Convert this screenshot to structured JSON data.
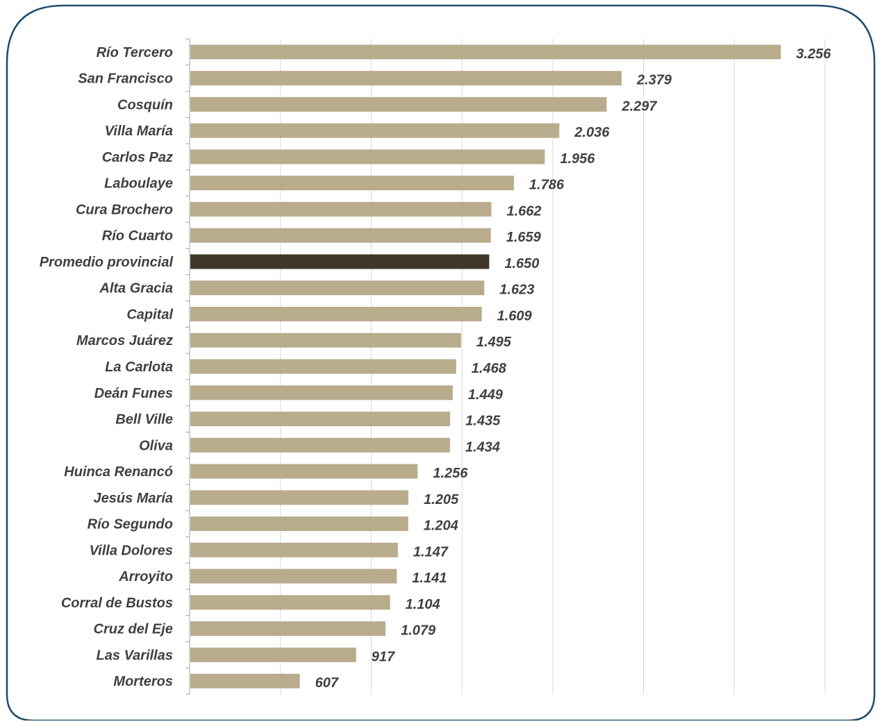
{
  "chart_data": {
    "type": "bar",
    "orientation": "horizontal",
    "title": "",
    "xlabel": "",
    "ylabel": "",
    "xlim": [
      0,
      3500
    ],
    "grid": true,
    "legend": "none",
    "colors": {
      "bar": "#B9AC8D",
      "highlight": "#3F3828",
      "text": "#404040",
      "grid": "#D9D9D9",
      "frame": "#1F4E6B"
    },
    "highlight_category": "Promedio provincial",
    "categories": [
      "Río Tercero",
      "San Francisco",
      "Cosquín",
      "Villa María",
      "Carlos Paz",
      "Laboulaye",
      "Cura Brochero",
      "Río Cuarto",
      "Promedio provincial",
      "Alta Gracia",
      "Capital",
      "Marcos Juárez",
      "La Carlota",
      "Deán Funes",
      "Bell Ville",
      "Oliva",
      "Huinca Renancó",
      "Jesús María",
      "Río Segundo",
      "Villa Dolores",
      "Arroyito",
      "Corral de Bustos",
      "Cruz del Eje",
      "Las Varillas",
      "Morteros"
    ],
    "values": [
      3256,
      2379,
      2297,
      2036,
      1956,
      1786,
      1662,
      1659,
      1650,
      1623,
      1609,
      1495,
      1468,
      1449,
      1435,
      1434,
      1256,
      1205,
      1204,
      1147,
      1141,
      1104,
      1079,
      917,
      607
    ],
    "value_labels": [
      "3.256",
      "2.379",
      "2.297",
      "2.036",
      "1.956",
      "1.786",
      "1.662",
      "1.659",
      "1.650",
      "1.623",
      "1.609",
      "1.495",
      "1.468",
      "1.449",
      "1.435",
      "1.434",
      "1.256",
      "1.205",
      "1.204",
      "1.147",
      "1.141",
      "1.104",
      "1.079",
      "917",
      "607"
    ]
  }
}
